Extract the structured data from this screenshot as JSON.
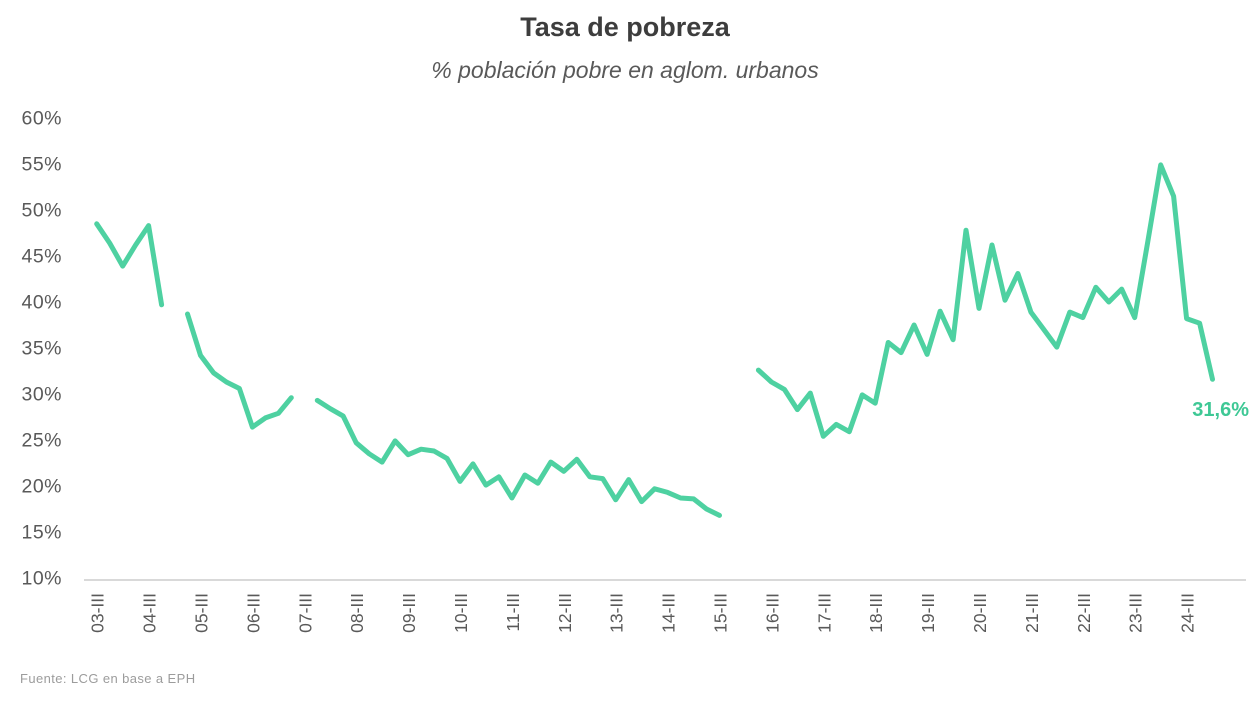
{
  "chart_data": {
    "type": "line",
    "title": "Tasa de pobreza",
    "subtitle": "% población pobre en aglom. urbanos",
    "source": "Fuente: LCG en base a EPH",
    "series_name": "Tasa de pobreza (% población pobre en aglomerados urbanos)",
    "x": [
      "03-III",
      "03-IV",
      "04-I",
      "04-II",
      "04-III",
      "04-IV",
      "05-I",
      "05-II",
      "05-III",
      "05-IV",
      "06-I",
      "06-II",
      "06-III",
      "06-IV",
      "07-I",
      "07-II",
      "07-III",
      "07-IV",
      "08-I",
      "08-II",
      "08-III",
      "08-IV",
      "09-I",
      "09-II",
      "09-III",
      "09-IV",
      "10-I",
      "10-II",
      "10-III",
      "10-IV",
      "11-I",
      "11-II",
      "11-III",
      "11-IV",
      "12-I",
      "12-II",
      "12-III",
      "12-IV",
      "13-I",
      "13-II",
      "13-III",
      "13-IV",
      "14-I",
      "14-II",
      "14-III",
      "14-IV",
      "15-I",
      "15-II",
      "15-III",
      "15-IV",
      "16-I",
      "16-II",
      "16-III",
      "16-IV",
      "17-I",
      "17-II",
      "17-III",
      "17-IV",
      "18-I",
      "18-II",
      "18-III",
      "18-IV",
      "19-I",
      "19-II",
      "19-III",
      "19-IV",
      "20-I",
      "20-II",
      "20-III",
      "20-IV",
      "21-I",
      "21-II",
      "21-III",
      "21-IV",
      "22-I",
      "22-II",
      "22-III",
      "22-IV",
      "23-I",
      "23-II",
      "23-III",
      "23-IV",
      "24-I",
      "24-II",
      "24-III",
      "24-IV",
      "25-I"
    ],
    "values": [
      48.5,
      46.4,
      43.9,
      46.2,
      48.3,
      39.7,
      null,
      38.7,
      34.2,
      32.3,
      31.3,
      30.6,
      26.4,
      27.4,
      27.9,
      29.6,
      null,
      29.3,
      28.4,
      27.6,
      24.7,
      23.5,
      22.6,
      24.9,
      23.4,
      24.0,
      23.8,
      23.0,
      20.5,
      22.4,
      20.1,
      21.0,
      18.7,
      21.2,
      20.3,
      22.6,
      21.6,
      22.9,
      21.0,
      20.8,
      18.5,
      20.7,
      18.3,
      19.7,
      19.3,
      18.7,
      18.6,
      17.5,
      16.8,
      null,
      null,
      32.6,
      31.3,
      30.5,
      28.3,
      30.1,
      25.4,
      26.7,
      25.9,
      29.9,
      29.0,
      35.6,
      34.5,
      37.5,
      34.3,
      39.0,
      35.9,
      47.8,
      39.3,
      46.2,
      40.2,
      43.1,
      38.9,
      37.0,
      35.1,
      38.9,
      38.3,
      41.6,
      40.0,
      41.4,
      38.3,
      46.5,
      54.9,
      51.5,
      38.2,
      37.7,
      31.6
    ],
    "x_tick_labels": [
      "03-III",
      "04-III",
      "05-III",
      "06-III",
      "07-III",
      "08-III",
      "09-III",
      "10-III",
      "11-III",
      "12-III",
      "13-III",
      "14-III",
      "15-III",
      "16-III",
      "17-III",
      "18-III",
      "19-III",
      "20-III",
      "21-III",
      "22-III",
      "23-III",
      "24-III"
    ],
    "y_ticks": [
      60,
      55,
      50,
      45,
      40,
      35,
      30,
      25,
      20,
      15,
      10
    ],
    "y_tick_labels": [
      "60%",
      "55%",
      "50%",
      "45%",
      "40%",
      "35%",
      "30%",
      "25%",
      "20%",
      "15%",
      "10%"
    ],
    "ylim": [
      10,
      60
    ],
    "end_label": "31,6%",
    "end_value": 31.6,
    "legend": "none",
    "grid": "bottom axis line only",
    "colors": {
      "line": "#4ed1a1",
      "end_label": "#3ec895",
      "title": "#3d3d3d",
      "subtitle": "#595959",
      "tick": "#595959",
      "axis": "#d9d9d9",
      "source": "#9c9c9c",
      "background": "#ffffff"
    }
  }
}
